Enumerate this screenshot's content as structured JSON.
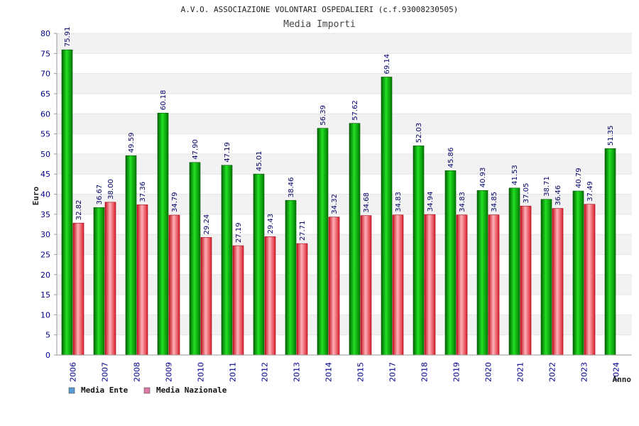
{
  "chart_data": {
    "type": "bar",
    "title": "A.V.O. ASSOCIAZIONE VOLONTARI OSPEDALIERI (c.f.93008230505)",
    "subtitle": "Media Importi",
    "xlabel": "Anno",
    "ylabel": "Euro",
    "ylim": [
      0,
      80
    ],
    "yticks": [
      0,
      5,
      10,
      15,
      20,
      25,
      30,
      35,
      40,
      45,
      50,
      55,
      60,
      65,
      70,
      75,
      80
    ],
    "categories": [
      "2006",
      "2007",
      "2008",
      "2009",
      "2010",
      "2011",
      "2012",
      "2013",
      "2014",
      "2015",
      "2017",
      "2018",
      "2019",
      "2020",
      "2021",
      "2022",
      "2023",
      "2024"
    ],
    "series": [
      {
        "name": "Media Ente",
        "color": "#00b000",
        "values": [
          75.91,
          36.67,
          49.59,
          60.18,
          47.9,
          47.19,
          45.01,
          38.46,
          56.39,
          57.62,
          69.14,
          52.03,
          45.86,
          40.93,
          41.53,
          38.71,
          40.79,
          51.35
        ],
        "labels": [
          "75.91",
          "36.67",
          "49.59",
          "60.18",
          "47.90",
          "47.19",
          "45.01",
          "38.46",
          "56.39",
          "57.62",
          "69.14",
          "52.03",
          "45.86",
          "40.93",
          "41.53",
          "38.71",
          "40.79",
          "51.35"
        ]
      },
      {
        "name": "Media Nazionale",
        "color": "#e0202a",
        "values": [
          32.82,
          38.0,
          37.36,
          34.79,
          29.24,
          27.19,
          29.43,
          27.71,
          34.32,
          34.68,
          34.83,
          34.94,
          34.83,
          34.85,
          37.05,
          36.46,
          37.49,
          null
        ],
        "labels": [
          "32.82",
          "38.00",
          "37.36",
          "34.79",
          "29.24",
          "27.19",
          "29.43",
          "27.71",
          "34.32",
          "34.68",
          "34.83",
          "34.94",
          "34.83",
          "34.85",
          "37.05",
          "36.46",
          "37.49",
          null
        ]
      }
    ],
    "legend": {
      "position": "bottom-left",
      "items": [
        {
          "label": "Media Ente",
          "color": "#5b9bd5"
        },
        {
          "label": "Media Nazionale",
          "color": "#e07aa8"
        }
      ]
    },
    "grid": true
  }
}
